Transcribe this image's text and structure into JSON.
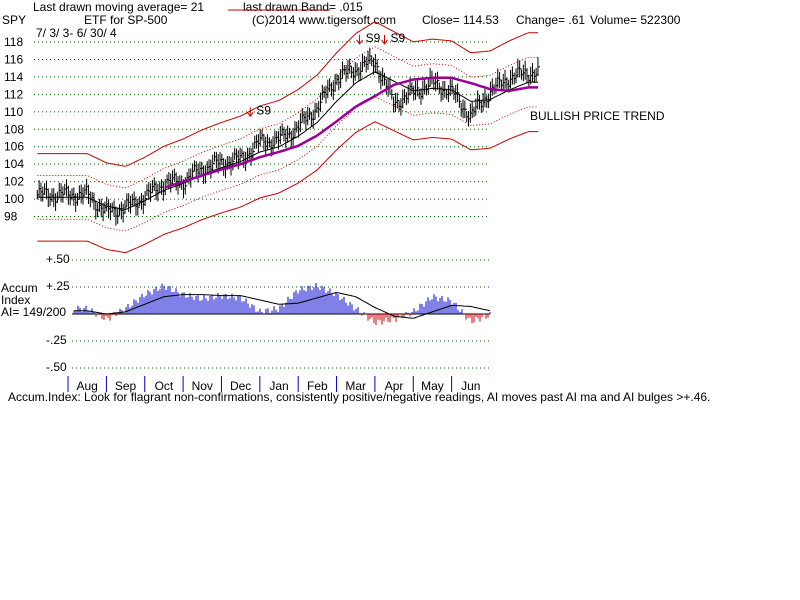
{
  "header": {
    "ticker": "SPY",
    "ma_text": "Last drawn moving average= 21",
    "band_text": "last drawn Band= .015",
    "etf_text": "ETF for SP-500",
    "copyright_text": "(C)2014 www.tigersoft.com",
    "close_text": "Close=  114.53",
    "change_text": "Change= .61",
    "volume_text": "Volume= 522300",
    "date_range": "7/ 3/ 3-  6/ 30/ 4"
  },
  "trend_label": "BULLISH PRICE TREND",
  "accum": {
    "title_line1": "Accum",
    "title_line2": "Index",
    "ai_text": "AI= 149/200",
    "yticks": [
      "+.50",
      "+.25",
      "-.25",
      "-.50"
    ]
  },
  "footer_text": "Accum.Index: Look for flagrant non-confirmations, consistently positive/negative readings, AI moves past AI ma and AI bulges >+.46.",
  "signals": [
    {
      "label": "S9",
      "month_index": 4.25,
      "price": 109.6
    },
    {
      "label": "S9",
      "month_index": 7.1,
      "price": 117.9
    },
    {
      "label": "S9",
      "month_index": 7.75,
      "price": 117.9
    }
  ],
  "colors": {
    "band": "#cc0000",
    "ma": "#000000",
    "long_ma": "#990099",
    "grid": "#006600",
    "accum_pos": "#0000cc",
    "accum_neg": "#cc0000"
  },
  "chart_data": [
    {
      "type": "ohlc",
      "title": "SPY",
      "ylim": [
        96,
        118
      ],
      "yticks": [
        98,
        100,
        102,
        104,
        106,
        108,
        110,
        112,
        114,
        116,
        118
      ],
      "months": [
        "Aug",
        "Sep",
        "Oct",
        "Nov",
        "Dec",
        "Jan",
        "Feb",
        "Mar",
        "Apr",
        "May",
        "Jun"
      ],
      "x": [
        0,
        0.5,
        1,
        1.5,
        2,
        2.5,
        3,
        3.5,
        4,
        4.5,
        5,
        5.5,
        6,
        6.5,
        7,
        7.5,
        8,
        8.5,
        9,
        9.5,
        10,
        10.5,
        11,
        11.5
      ],
      "close": [
        100.5,
        98.5,
        99.0,
        100.2,
        101.8,
        102.0,
        103.5,
        104.2,
        104.5,
        106.5,
        106.8,
        108.2,
        110.5,
        113.8,
        114.9,
        115.8,
        111.0,
        112.2,
        113.3,
        112.3,
        109.5,
        112.3,
        113.9,
        114.5
      ],
      "ma21": [
        100.2,
        99.2,
        98.8,
        99.8,
        101.0,
        101.8,
        102.8,
        103.6,
        104.3,
        105.4,
        106.0,
        107.2,
        108.8,
        111.2,
        113.3,
        114.6,
        113.5,
        112.4,
        112.7,
        112.5,
        111.2,
        111.4,
        112.5,
        113.4
      ],
      "long_ma": [
        null,
        null,
        100.1,
        100.7,
        101.3,
        102.0,
        102.7,
        103.4,
        104.0,
        104.8,
        105.4,
        106.1,
        107.3,
        108.9,
        110.6,
        111.8,
        113.1,
        113.7,
        113.9,
        113.9,
        113.3,
        112.6,
        112.4,
        112.8
      ]
    },
    {
      "type": "bar",
      "title": "Accum Index",
      "ylim": [
        -0.5,
        0.5
      ],
      "x": [
        0,
        0.5,
        1,
        1.5,
        2,
        2.5,
        3,
        3.5,
        4,
        4.5,
        5,
        5.5,
        6,
        6.5,
        7,
        7.5,
        8,
        8.5,
        9,
        9.5,
        10,
        10.5,
        11,
        11.5
      ],
      "values": [
        0.05,
        -0.05,
        0.05,
        0.18,
        0.26,
        0.18,
        0.14,
        0.17,
        0.15,
        0.02,
        0.05,
        0.22,
        0.26,
        0.18,
        0.05,
        -0.08,
        -0.05,
        0.02,
        0.16,
        0.12,
        -0.07,
        -0.01,
        0.18,
        0.25
      ],
      "ma": [
        0.03,
        0.0,
        0.02,
        0.09,
        0.16,
        0.18,
        0.18,
        0.17,
        0.17,
        0.13,
        0.09,
        0.1,
        0.15,
        0.2,
        0.16,
        0.06,
        -0.02,
        -0.04,
        0.02,
        0.08,
        0.07,
        0.03,
        0.08,
        0.14
      ]
    }
  ]
}
